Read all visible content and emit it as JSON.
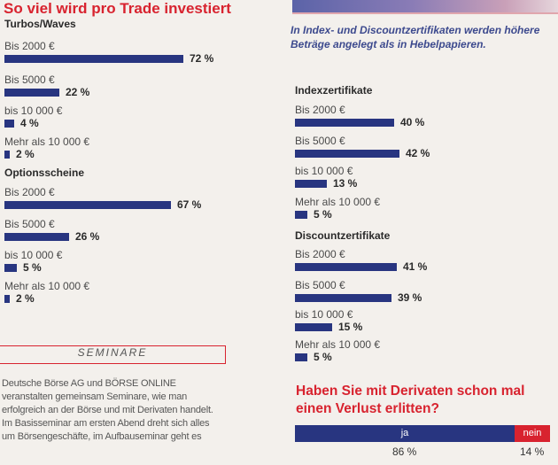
{
  "title": "So viel wird pro Trade investiert",
  "caption": "In Index- und Discountzertifikaten werden höhere Beträge angelegt als in Hebelpapieren.",
  "colors": {
    "accent": "#d8232f",
    "bar": "#283580"
  },
  "chart_data": [
    {
      "type": "bar",
      "group": "Turbos/Waves",
      "categories": [
        "Bis 2000 €",
        "Bis 5000 €",
        "bis 10 000 €",
        "Mehr als 10 000 €"
      ],
      "values": [
        72,
        22,
        4,
        2
      ],
      "value_labels": [
        "72 %",
        "22 %",
        "4 %",
        "2 %"
      ],
      "orientation": "horizontal"
    },
    {
      "type": "bar",
      "group": "Optionsscheine",
      "categories": [
        "Bis 2000 €",
        "Bis 5000 €",
        "bis 10 000 €",
        "Mehr als 10 000 €"
      ],
      "values": [
        67,
        26,
        5,
        2
      ],
      "value_labels": [
        "67 %",
        "26 %",
        "5 %",
        "2 %"
      ],
      "orientation": "horizontal"
    },
    {
      "type": "bar",
      "group": "Indexzertifikate",
      "categories": [
        "Bis 2000 €",
        "Bis 5000 €",
        "bis 10 000 €",
        "Mehr als 10 000 €"
      ],
      "values": [
        40,
        42,
        13,
        5
      ],
      "value_labels": [
        "40 %",
        "42 %",
        "13 %",
        "5 %"
      ],
      "orientation": "horizontal"
    },
    {
      "type": "bar",
      "group": "Discountzertifikate",
      "categories": [
        "Bis 2000 €",
        "Bis 5000 €",
        "bis 10 000 €",
        "Mehr als 10 000 €"
      ],
      "values": [
        41,
        39,
        15,
        5
      ],
      "value_labels": [
        "41 %",
        "39 %",
        "15 %",
        "5 %"
      ],
      "orientation": "horizontal"
    },
    {
      "type": "bar",
      "stacked": true,
      "title": "Haben Sie mit Derivaten schon mal einen Verlust erlitten?",
      "categories": [
        "ja",
        "nein"
      ],
      "values": [
        86,
        14
      ],
      "value_labels": [
        "86 %",
        "14 %"
      ],
      "colors": [
        "#283580",
        "#d8232f"
      ]
    }
  ],
  "seminare": {
    "heading": "SEMINARE",
    "text": "Deutsche Börse AG und BÖRSE ONLINE veranstalten gemeinsam Seminare, wie man erfolgreich an der Börse und mit Derivaten handelt. Im Basisseminar am ersten Abend dreht sich alles um Börsengeschäfte, im Aufbauseminar geht es"
  }
}
